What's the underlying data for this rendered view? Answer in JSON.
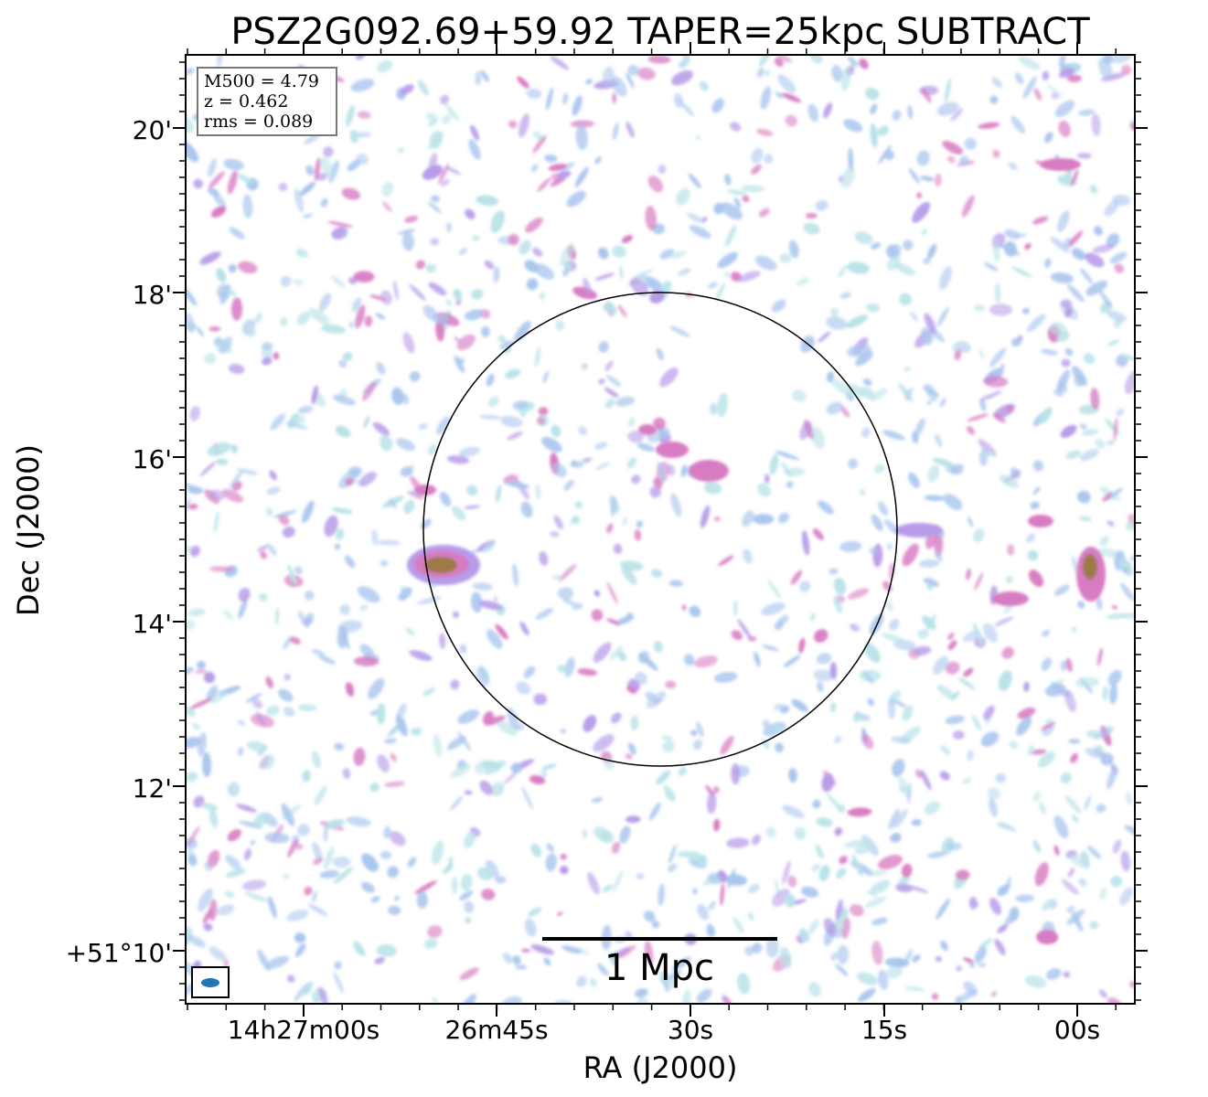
{
  "title": "PSZ2G092.69+59.92 TAPER=25kpc SUBTRACT",
  "info_box": {
    "m500": "M500 = 4.79",
    "z": "z = 0.462",
    "rms": "rms = 0.089"
  },
  "axes": {
    "xlabel": "RA (J2000)",
    "ylabel": "Dec (J2000)",
    "x_ticks": [
      "14h27m00s",
      "26m45s",
      "30s",
      "15s",
      "00s"
    ],
    "y_ticks": [
      "20'",
      "18'",
      "16'",
      "14'",
      "12'",
      "+51°10'"
    ]
  },
  "scalebar": {
    "label": "1 Mpc"
  },
  "colors": {
    "faint": "#b8e2e8",
    "low": "#aac6ee",
    "mid": "#b79be8",
    "high": "#d77bc2",
    "peak": "#9e7a45",
    "beam": "#1f77b4"
  }
}
